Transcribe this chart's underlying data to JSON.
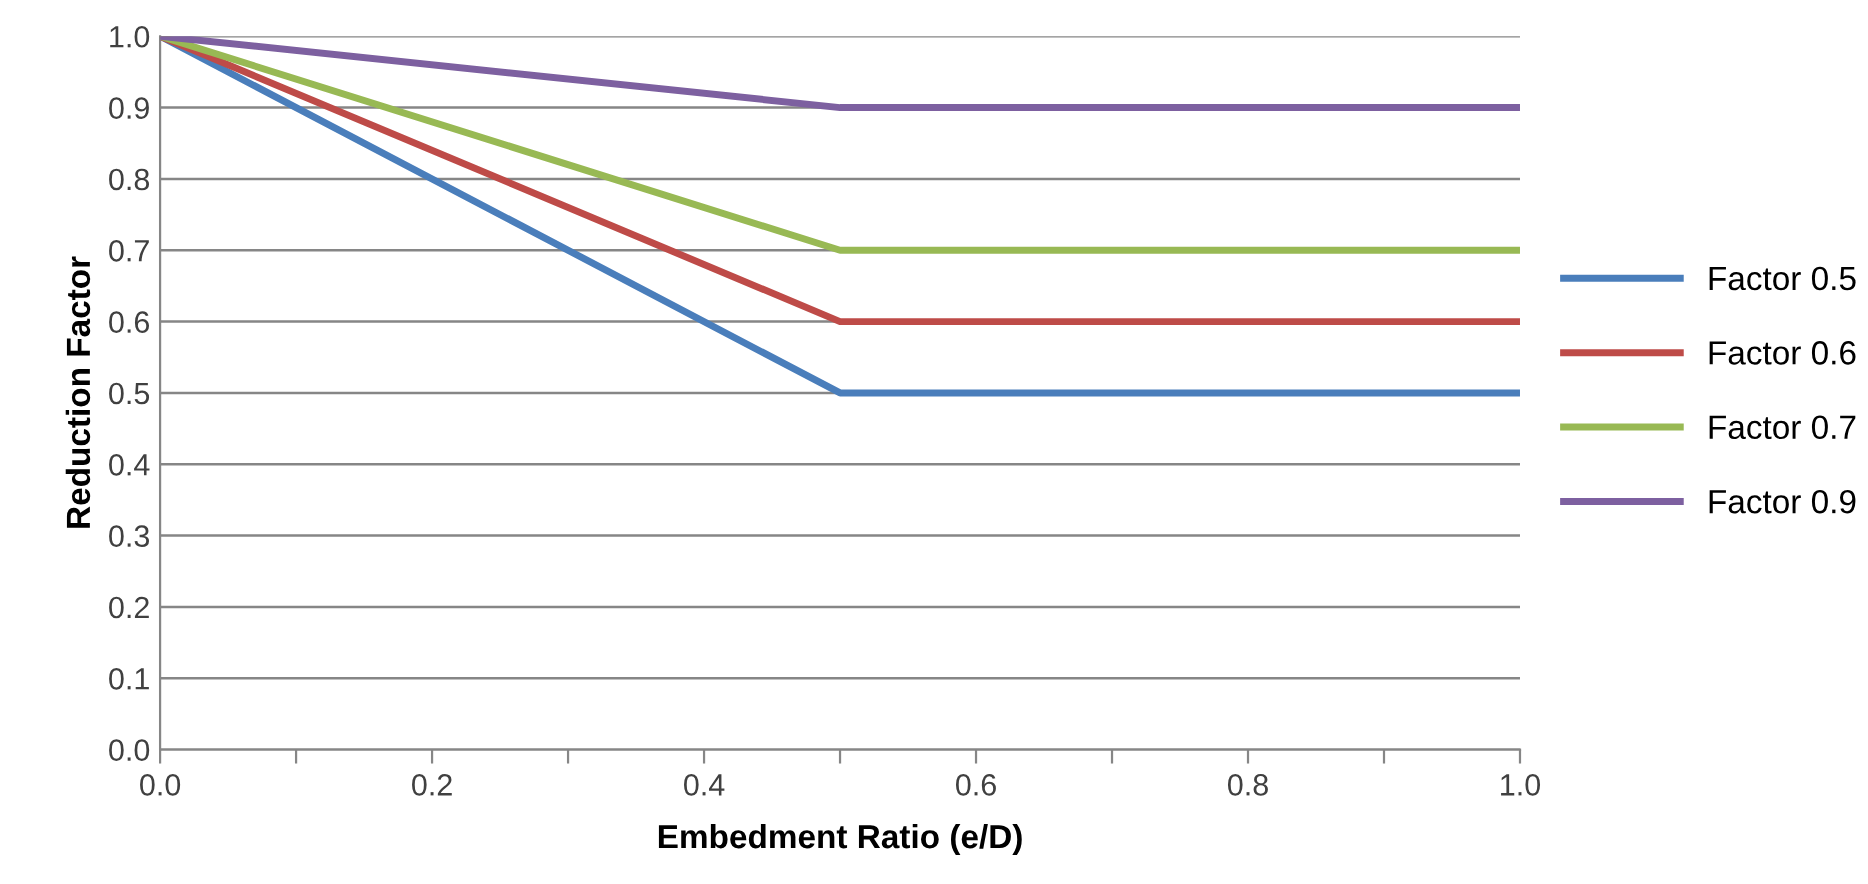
{
  "chart_data": {
    "type": "line",
    "xlabel": "Embedment Ratio (e/D)",
    "ylabel": "Reduction Factor",
    "xlim": [
      0.0,
      1.0
    ],
    "ylim": [
      0.0,
      1.0
    ],
    "xticks": [
      {
        "value": 0.0,
        "label": "0.0"
      },
      {
        "value": 0.1,
        "label": null
      },
      {
        "value": 0.2,
        "label": "0.2"
      },
      {
        "value": 0.3,
        "label": null
      },
      {
        "value": 0.4,
        "label": "0.4"
      },
      {
        "value": 0.5,
        "label": null
      },
      {
        "value": 0.6,
        "label": "0.6"
      },
      {
        "value": 0.7,
        "label": null
      },
      {
        "value": 0.8,
        "label": "0.8"
      },
      {
        "value": 0.9,
        "label": null
      },
      {
        "value": 1.0,
        "label": "1.0"
      }
    ],
    "yticks": [
      {
        "value": 0.0,
        "label": "0.0"
      },
      {
        "value": 0.1,
        "label": "0.1"
      },
      {
        "value": 0.2,
        "label": "0.2"
      },
      {
        "value": 0.3,
        "label": "0.3"
      },
      {
        "value": 0.4,
        "label": "0.4"
      },
      {
        "value": 0.5,
        "label": "0.5"
      },
      {
        "value": 0.6,
        "label": "0.6"
      },
      {
        "value": 0.7,
        "label": "0.7"
      },
      {
        "value": 0.8,
        "label": "0.8"
      },
      {
        "value": 0.9,
        "label": "0.9"
      },
      {
        "value": 1.0,
        "label": "1.0"
      }
    ],
    "grid": "y",
    "legend": "right",
    "marker": "none",
    "line_style": "solid",
    "x": [
      0.0,
      0.5,
      1.0
    ],
    "series": [
      {
        "name": "Factor 0.5",
        "color": "#4a7ebb",
        "values": [
          1.0,
          0.5,
          0.5
        ]
      },
      {
        "name": "Factor 0.6",
        "color": "#be4b48",
        "values": [
          1.0,
          0.6,
          0.6
        ]
      },
      {
        "name": "Factor 0.7",
        "color": "#98b954",
        "values": [
          1.0,
          0.7,
          0.7
        ]
      },
      {
        "name": "Factor 0.9",
        "color": "#7d60a0",
        "values": [
          1.0,
          0.9,
          0.9
        ]
      }
    ]
  }
}
